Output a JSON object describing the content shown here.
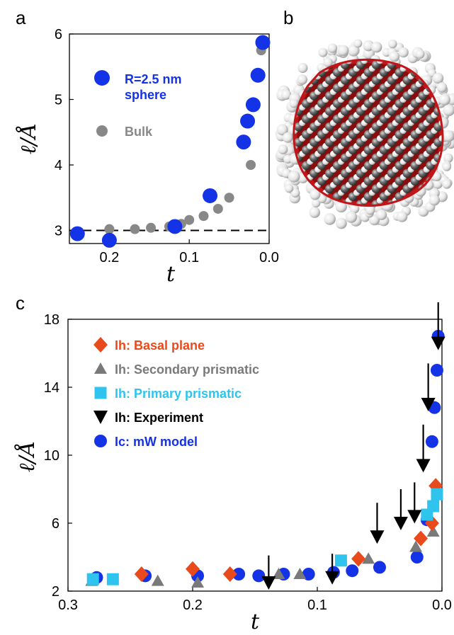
{
  "panels": {
    "a": "a",
    "b": "b",
    "c": "c"
  },
  "chart_data": [
    {
      "panel": "a",
      "type": "scatter",
      "xlabel": "t",
      "ylabel": "ℓ/Å",
      "xlim": [
        0.25,
        0.0
      ],
      "ylim": [
        2.8,
        6.0
      ],
      "x_reversed": true,
      "xticks": [
        "0.2",
        "0.1",
        "0.0"
      ],
      "yticks": [
        "3",
        "4",
        "5",
        "6"
      ],
      "reference_line": {
        "y": 3.0,
        "style": "dashed"
      },
      "series": [
        {
          "name": "R=2.5 nm\nsphere",
          "legend_lines": [
            "R=2.5 nm",
            "sphere"
          ],
          "color": "#1432e6",
          "marker": "circle-large",
          "points": [
            [
              0.24,
              2.95
            ],
            [
              0.2,
              2.85
            ],
            [
              0.118,
              3.06
            ],
            [
              0.074,
              3.53
            ],
            [
              0.032,
              4.35
            ],
            [
              0.027,
              4.67
            ],
            [
              0.02,
              4.92
            ],
            [
              0.014,
              5.37
            ],
            [
              0.008,
              5.87
            ]
          ]
        },
        {
          "name": "Bulk",
          "color": "#888888",
          "marker": "circle-small",
          "points": [
            [
              0.2,
              3.02
            ],
            [
              0.168,
              3.02
            ],
            [
              0.148,
              3.04
            ],
            [
              0.125,
              3.06
            ],
            [
              0.11,
              3.1
            ],
            [
              0.1,
              3.16
            ],
            [
              0.082,
              3.22
            ],
            [
              0.064,
              3.33
            ],
            [
              0.05,
              3.5
            ],
            [
              0.023,
              4.0
            ],
            [
              0.01,
              5.75
            ]
          ]
        }
      ]
    },
    {
      "panel": "c",
      "type": "scatter",
      "xlabel": "t",
      "ylabel": "ℓ/Å",
      "xlim": [
        0.3,
        0.0
      ],
      "ylim": [
        2,
        18
      ],
      "x_reversed": true,
      "xticks": [
        "0.3",
        "0.2",
        "0.1",
        "0.0"
      ],
      "yticks": [
        "2",
        "6",
        "10",
        "14",
        "18"
      ],
      "legend_position": "top-left",
      "series": [
        {
          "name": "Ih: Basal plane",
          "color": "#e84a1b",
          "marker": "diamond",
          "points": [
            [
              0.241,
              3.0
            ],
            [
              0.2,
              3.3
            ],
            [
              0.17,
              3.0
            ],
            [
              0.067,
              3.9
            ],
            [
              0.017,
              5.1
            ],
            [
              0.008,
              6.0
            ],
            [
              0.005,
              8.2
            ]
          ]
        },
        {
          "name": "Ih: Secondary prismatic",
          "color": "#7a7a7a",
          "marker": "triangle-up",
          "points": [
            [
              0.281,
              2.6
            ],
            [
              0.228,
              2.6
            ],
            [
              0.196,
              2.5
            ],
            [
              0.131,
              3.0
            ],
            [
              0.114,
              3.0
            ],
            [
              0.059,
              3.9
            ],
            [
              0.021,
              4.6
            ],
            [
              0.007,
              5.5
            ]
          ]
        },
        {
          "name": "Ih: Primary prismatic",
          "color": "#2ec4ee",
          "marker": "square",
          "points": [
            [
              0.28,
              2.7
            ],
            [
              0.264,
              2.7
            ],
            [
              0.081,
              3.8
            ],
            [
              0.012,
              6.5
            ],
            [
              0.007,
              7.0
            ],
            [
              0.004,
              7.7
            ]
          ]
        },
        {
          "name": "Ih: Experiment",
          "color": "#000000",
          "marker": "triangle-down",
          "points": [
            {
              "x": 0.139,
              "y": 2.5,
              "yerr_up": 1.6
            },
            {
              "x": 0.088,
              "y": 2.8,
              "yerr_up": 1.4
            },
            {
              "x": 0.052,
              "y": 5.2,
              "yerr_up": 2.0
            },
            {
              "x": 0.033,
              "y": 6.0,
              "yerr_up": 2.0
            },
            {
              "x": 0.022,
              "y": 6.4,
              "yerr_up": 2.0
            },
            {
              "x": 0.015,
              "y": 9.4,
              "yerr_up": 2.4
            },
            {
              "x": 0.011,
              "y": 13.0,
              "yerr_up": 2.4
            },
            {
              "x": 0.003,
              "y": 16.6,
              "yerr_up": 2.4
            }
          ]
        },
        {
          "name": "Ic: mW model",
          "color": "#1432e6",
          "marker": "circle",
          "points": [
            [
              0.277,
              2.8
            ],
            [
              0.238,
              2.9
            ],
            [
              0.196,
              2.9
            ],
            [
              0.163,
              3.0
            ],
            [
              0.147,
              2.9
            ],
            [
              0.127,
              3.0
            ],
            [
              0.107,
              3.0
            ],
            [
              0.087,
              3.1
            ],
            [
              0.072,
              3.2
            ],
            [
              0.05,
              3.4
            ],
            [
              0.02,
              4.0
            ],
            [
              0.012,
              6.2
            ],
            [
              0.008,
              10.8
            ],
            [
              0.006,
              12.8
            ],
            [
              0.004,
              15.0
            ],
            [
              0.003,
              17.0
            ]
          ]
        }
      ]
    }
  ]
}
